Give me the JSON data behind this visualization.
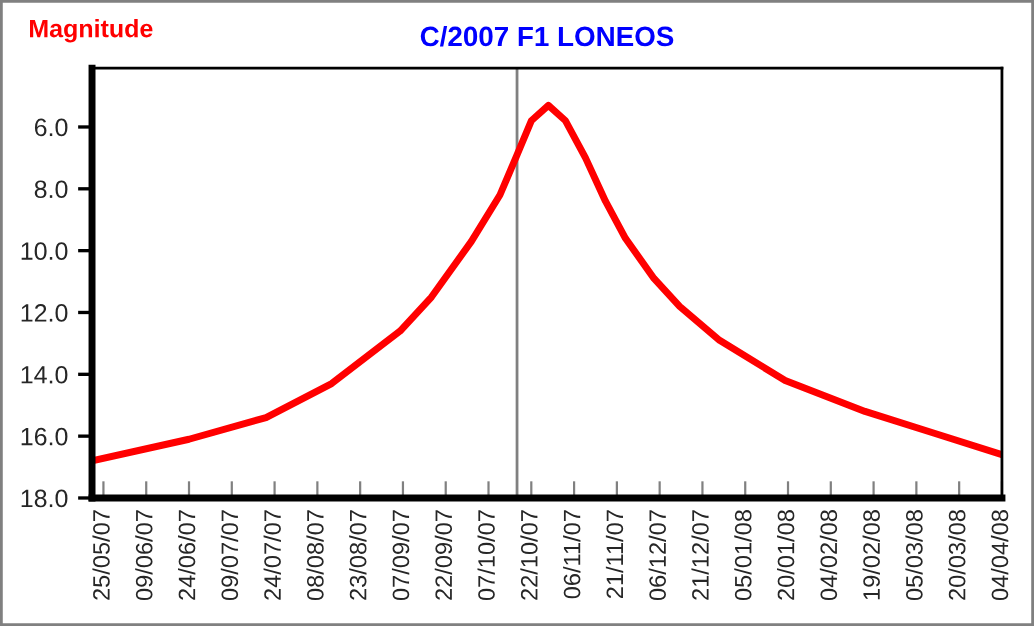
{
  "chart_data": {
    "type": "line",
    "title": "C/2007 F1 LONEOS",
    "ylabel": "Magnitude",
    "x": [
      "2007-05-21",
      "2007-06-24",
      "2007-07-21",
      "2007-08-13",
      "2007-09-06",
      "2007-09-17",
      "2007-10-01",
      "2007-10-11",
      "2007-10-17",
      "2007-10-22",
      "2007-10-28",
      "2007-11-03",
      "2007-11-10",
      "2007-11-17",
      "2007-11-24",
      "2007-12-04",
      "2007-12-13",
      "2007-12-27",
      "2008-01-19",
      "2008-02-16",
      "2008-03-11",
      "2008-04-04"
    ],
    "series": [
      {
        "color": "#ff0000",
        "values": [
          16.8,
          16.1,
          15.4,
          14.3,
          12.6,
          11.5,
          9.7,
          8.2,
          6.9,
          5.8,
          5.3,
          5.8,
          7.0,
          8.4,
          9.6,
          10.9,
          11.8,
          12.9,
          14.2,
          15.2,
          15.9,
          16.6
        ]
      }
    ],
    "xlim": [
      "2007-05-21",
      "2008-04-04"
    ],
    "xticks": [
      {
        "value": "2007-05-25",
        "label": "25/05/07"
      },
      {
        "value": "2007-06-09",
        "label": "09/06/07"
      },
      {
        "value": "2007-06-24",
        "label": "24/06/07"
      },
      {
        "value": "2007-07-09",
        "label": "09/07/07"
      },
      {
        "value": "2007-07-24",
        "label": "24/07/07"
      },
      {
        "value": "2007-08-08",
        "label": "08/08/07"
      },
      {
        "value": "2007-08-23",
        "label": "23/08/07"
      },
      {
        "value": "2007-09-07",
        "label": "07/09/07"
      },
      {
        "value": "2007-09-22",
        "label": "22/09/07"
      },
      {
        "value": "2007-10-07",
        "label": "07/10/07"
      },
      {
        "value": "2007-10-22",
        "label": "22/10/07"
      },
      {
        "value": "2007-11-06",
        "label": "06/11/07"
      },
      {
        "value": "2007-11-21",
        "label": "21/11/07"
      },
      {
        "value": "2007-12-06",
        "label": "06/12/07"
      },
      {
        "value": "2007-12-21",
        "label": "21/12/07"
      },
      {
        "value": "2008-01-05",
        "label": "05/01/08"
      },
      {
        "value": "2008-01-20",
        "label": "20/01/08"
      },
      {
        "value": "2008-02-04",
        "label": "04/02/08"
      },
      {
        "value": "2008-02-19",
        "label": "19/02/08"
      },
      {
        "value": "2008-03-05",
        "label": "05/03/08"
      },
      {
        "value": "2008-03-20",
        "label": "20/03/08"
      },
      {
        "value": "2008-04-04",
        "label": "04/04/08"
      }
    ],
    "ylim": [
      18,
      4.1
    ],
    "yticks": [
      {
        "value": 6,
        "label": "6.0"
      },
      {
        "value": 8,
        "label": "8.0"
      },
      {
        "value": 10,
        "label": "10.0"
      },
      {
        "value": 12,
        "label": "12.0"
      },
      {
        "value": 14,
        "label": "14.0"
      },
      {
        "value": 16,
        "label": "16.0"
      },
      {
        "value": 18,
        "label": "18.0"
      }
    ],
    "ref_lines": [
      {
        "axis": "x",
        "value": "2007-10-17",
        "color": "#808080"
      }
    ],
    "grid": false,
    "legend": false,
    "marker": "none",
    "line_style": "solid"
  }
}
